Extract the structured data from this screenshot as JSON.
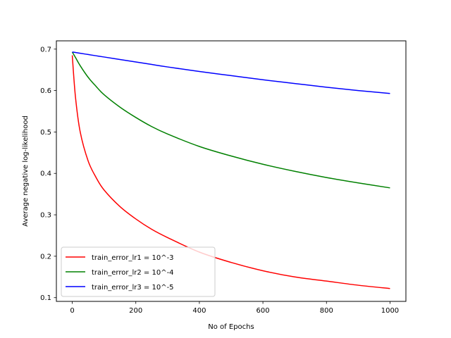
{
  "chart_data": {
    "type": "line",
    "title": "",
    "xlabel": "No of Epochs",
    "ylabel": "Average negative log-likelihood",
    "xlim": [
      -50,
      1050
    ],
    "ylim": [
      0.091,
      0.72
    ],
    "xticks": [
      0,
      200,
      400,
      600,
      800,
      1000
    ],
    "xtick_labels": [
      "0",
      "200",
      "400",
      "600",
      "800",
      "1000"
    ],
    "yticks": [
      0.1,
      0.2,
      0.3,
      0.4,
      0.5,
      0.6,
      0.7
    ],
    "ytick_labels": [
      "0.1",
      "0.2",
      "0.3",
      "0.4",
      "0.5",
      "0.6",
      "0.7"
    ],
    "grid": false,
    "legend_position": "lower-left",
    "x": [
      0,
      10,
      25,
      50,
      75,
      100,
      150,
      200,
      250,
      300,
      400,
      500,
      600,
      700,
      800,
      900,
      1000
    ],
    "series": [
      {
        "name": "train_error_lr1 = 10^-3",
        "color": "#ff0000",
        "values": [
          0.685,
          0.585,
          0.5,
          0.43,
          0.39,
          0.36,
          0.32,
          0.29,
          0.265,
          0.245,
          0.21,
          0.185,
          0.165,
          0.15,
          0.14,
          0.13,
          0.122
        ]
      },
      {
        "name": "train_error_lr2 = 10^-4",
        "color": "#008000",
        "values": [
          0.693,
          0.68,
          0.66,
          0.632,
          0.61,
          0.59,
          0.56,
          0.535,
          0.513,
          0.495,
          0.465,
          0.442,
          0.422,
          0.405,
          0.39,
          0.377,
          0.365
        ]
      },
      {
        "name": "train_error_lr3 = 10^-5",
        "color": "#0000ff",
        "values": [
          0.693,
          0.692,
          0.69,
          0.687,
          0.684,
          0.681,
          0.675,
          0.669,
          0.663,
          0.657,
          0.646,
          0.636,
          0.626,
          0.617,
          0.608,
          0.6,
          0.593
        ]
      }
    ]
  }
}
